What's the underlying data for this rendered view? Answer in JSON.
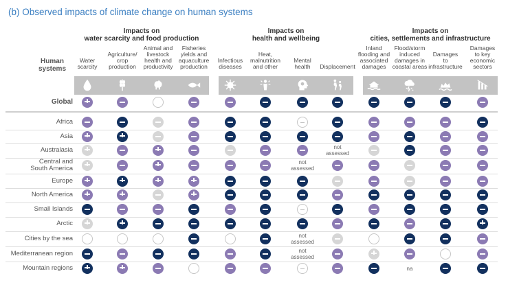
{
  "title": "(b) Observed impacts of climate change on human systems",
  "row_header": "Human\nsystems",
  "groups": [
    {
      "label": "Impacts on\nwater scarcity and food production"
    },
    {
      "label": "Impacts on\nhealth and wellbeing"
    },
    {
      "label": "Impacts on\ncities, settlements and infrastructure"
    }
  ],
  "columns": [
    {
      "label": "Water\nscarcity",
      "icon": "water-drop-icon",
      "group": 0
    },
    {
      "label": "Agriculture/\ncrop\nproduction",
      "icon": "wheat-icon",
      "group": 0
    },
    {
      "label": "Animal and\nlivestock\nhealth and\nproductivity",
      "icon": "chicken-icon",
      "group": 0
    },
    {
      "label": "Fisheries\nyields and\naquaculture\nproduction",
      "icon": "fish-icon",
      "group": 0
    },
    {
      "label": "Infectious\ndiseases",
      "icon": "virus-icon",
      "group": 1
    },
    {
      "label": "Heat,\nmalnutrition\nand other",
      "icon": "heat-person-icon",
      "group": 1
    },
    {
      "label": "Mental\nhealth",
      "icon": "brain-head-icon",
      "group": 1
    },
    {
      "label": "Displacement",
      "icon": "people-walking-icon",
      "group": 1
    },
    {
      "label": "Inland\nflooding and\nassociated\ndamages",
      "icon": "flooded-house-icon",
      "group": 2
    },
    {
      "label": "Flood/storm\ninduced\ndamages in\ncoastal areas",
      "icon": "storm-cloud-icon",
      "group": 2
    },
    {
      "label": "Damages\nto\ninfrastructure",
      "icon": "wave-infrastructure-icon",
      "group": 2
    },
    {
      "label": "Damages\nto key\neconomic\nsectors",
      "icon": "bar-decline-icon",
      "group": 2
    }
  ],
  "legend_states": {
    "dark": "#12305e",
    "purple": "#8b7ab3",
    "light": "#d6d6d6",
    "hollow": "#ffffff"
  },
  "chart_data": {
    "type": "table",
    "encoding": "dark/purple/light = confidence level of observed impact; '-' adverse, '±' adverse and positive; hollow = no evidence / not assessed",
    "rows": [
      {
        "label": "Global",
        "bold": true,
        "cells": [
          "purple±",
          "purple-",
          "hollow",
          "purple-",
          "purple-",
          "dark-",
          "dark-",
          "dark-",
          "dark-",
          "dark-",
          "dark-",
          "purple-"
        ]
      },
      {
        "label": "Africa",
        "cells": [
          "purple-",
          "dark-",
          "light-",
          "purple-",
          "dark-",
          "dark-",
          "hollow-",
          "dark-",
          "purple-",
          "purple-",
          "purple-",
          "dark-"
        ]
      },
      {
        "label": "Asia",
        "cells": [
          "purple±",
          "dark±",
          "light-",
          "purple-",
          "dark-",
          "dark-",
          "dark-",
          "dark-",
          "purple-",
          "dark-",
          "purple-",
          "purple-"
        ]
      },
      {
        "label": "Australasia",
        "cells": [
          "light±",
          "purple-",
          "purple±",
          "purple-",
          "light-",
          "purple-",
          "purple-",
          "text:not\nassessed",
          "light-",
          "dark-",
          "purple-",
          "purple-"
        ]
      },
      {
        "label": "Central and\nSouth America",
        "cells": [
          "light±",
          "purple-",
          "purple±",
          "purple-",
          "purple-",
          "purple-",
          "text:not\nassessed",
          "purple-",
          "purple-",
          "light-",
          "purple-",
          "purple-"
        ]
      },
      {
        "label": "Europe",
        "cells": [
          "purple±",
          "dark±",
          "purple±",
          "purple±",
          "dark-",
          "dark-",
          "dark-",
          "light-",
          "purple-",
          "light-",
          "purple-",
          "purple-"
        ]
      },
      {
        "label": "North America",
        "cells": [
          "purple±",
          "purple±",
          "light-",
          "purple±",
          "dark-",
          "dark-",
          "dark-",
          "purple-",
          "dark-",
          "dark-",
          "dark-",
          "dark-"
        ]
      },
      {
        "label": "Small Islands",
        "cells": [
          "dark-",
          "purple-",
          "purple-",
          "dark-",
          "purple-",
          "dark-",
          "hollow-",
          "dark-",
          "purple-",
          "dark-",
          "dark-",
          "dark-"
        ]
      },
      {
        "label": "Arctic",
        "cells": [
          "light±",
          "dark±",
          "dark-",
          "dark-",
          "dark-",
          "dark-",
          "dark-",
          "purple-",
          "dark-",
          "purple-",
          "dark-",
          "dark±"
        ]
      },
      {
        "label": "Cities by the sea",
        "cells": [
          "hollow",
          "hollow",
          "hollow",
          "dark-",
          "hollow",
          "dark-",
          "text:not\nassessed",
          "light-",
          "hollow",
          "dark-",
          "dark-",
          "purple-"
        ]
      },
      {
        "label": "Mediterranean region",
        "cells": [
          "dark-",
          "purple-",
          "dark-",
          "dark-",
          "purple-",
          "dark-",
          "text:not\nassessed",
          "purple-",
          "light±",
          "purple-",
          "hollow",
          "purple-"
        ]
      },
      {
        "label": "Mountain regions",
        "cells": [
          "dark±",
          "purple±",
          "purple-",
          "hollow",
          "purple-",
          "purple-",
          "hollow-",
          "purple-",
          "dark-",
          "text:na",
          "dark-",
          "dark-"
        ]
      }
    ]
  }
}
